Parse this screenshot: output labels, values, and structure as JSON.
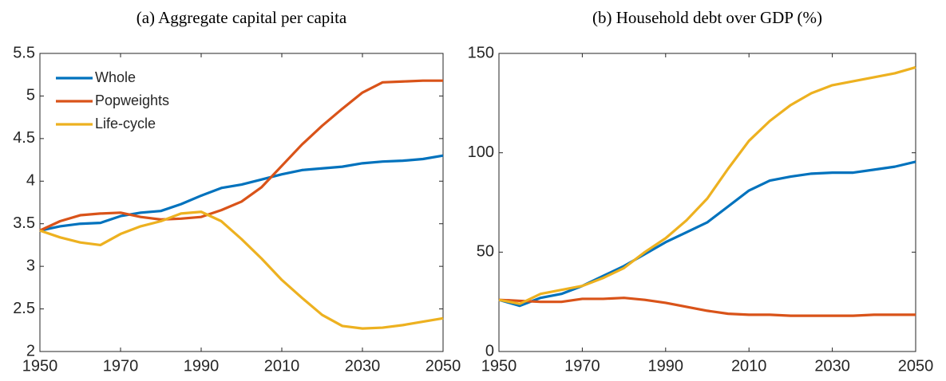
{
  "chart_data": [
    {
      "type": "line",
      "title": "(a) Aggregate capital per capita",
      "x": [
        1950,
        1955,
        1960,
        1965,
        1970,
        1975,
        1980,
        1985,
        1990,
        1995,
        2000,
        2005,
        2010,
        2015,
        2020,
        2025,
        2030,
        2035,
        2040,
        2045,
        2050
      ],
      "series": [
        {
          "name": "Whole",
          "color": "#0072BD",
          "values": [
            3.42,
            3.47,
            3.5,
            3.51,
            3.59,
            3.63,
            3.65,
            3.73,
            3.83,
            3.92,
            3.96,
            4.02,
            4.08,
            4.13,
            4.15,
            4.17,
            4.21,
            4.23,
            4.24,
            4.26,
            4.3
          ]
        },
        {
          "name": "Popweights",
          "color": "#D95319",
          "values": [
            3.42,
            3.53,
            3.6,
            3.62,
            3.63,
            3.58,
            3.55,
            3.56,
            3.58,
            3.66,
            3.76,
            3.93,
            4.18,
            4.43,
            4.65,
            4.85,
            5.04,
            5.16,
            5.17,
            5.18,
            5.18
          ]
        },
        {
          "name": "Life-cycle",
          "color": "#EDB120",
          "values": [
            3.42,
            3.34,
            3.28,
            3.25,
            3.38,
            3.47,
            3.53,
            3.62,
            3.64,
            3.53,
            3.32,
            3.09,
            2.84,
            2.63,
            2.43,
            2.3,
            2.27,
            2.28,
            2.31,
            2.35,
            2.39
          ]
        }
      ],
      "xlim": [
        1950,
        2050
      ],
      "xticks": [
        1950,
        1970,
        1990,
        2010,
        2030,
        2050
      ],
      "ylim": [
        2,
        5.5
      ],
      "yticks": [
        2,
        2.5,
        3,
        3.5,
        4,
        4.5,
        5,
        5.5
      ],
      "legend": "upper left",
      "grid": false
    },
    {
      "type": "line",
      "title": "(b) Household debt over GDP (%)",
      "x": [
        1950,
        1955,
        1960,
        1965,
        1970,
        1975,
        1980,
        1985,
        1990,
        1995,
        2000,
        2005,
        2010,
        2015,
        2020,
        2025,
        2030,
        2035,
        2040,
        2045,
        2050
      ],
      "series": [
        {
          "color": "#0072BD",
          "values": [
            26,
            23,
            27,
            29,
            33,
            38,
            43,
            49,
            55,
            60,
            65,
            73,
            81,
            86,
            88,
            89.5,
            90,
            90,
            91.5,
            93,
            95.5
          ]
        },
        {
          "color": "#D95319",
          "values": [
            26,
            25.5,
            25,
            25,
            26.5,
            26.5,
            27,
            26,
            24.5,
            22.5,
            20.5,
            19,
            18.5,
            18.5,
            18,
            18,
            18,
            18,
            18.5,
            18.5,
            18.5
          ]
        },
        {
          "color": "#EDB120",
          "values": [
            26,
            24,
            29,
            31,
            33,
            37,
            42,
            50,
            57,
            66,
            77,
            92,
            106,
            116,
            124,
            130,
            134,
            136,
            138,
            140,
            143
          ]
        }
      ],
      "xlim": [
        1950,
        2050
      ],
      "xticks": [
        1950,
        1970,
        1990,
        2010,
        2030,
        2050
      ],
      "ylim": [
        0,
        150
      ],
      "yticks": [
        0,
        50,
        100,
        150
      ],
      "grid": false
    }
  ]
}
